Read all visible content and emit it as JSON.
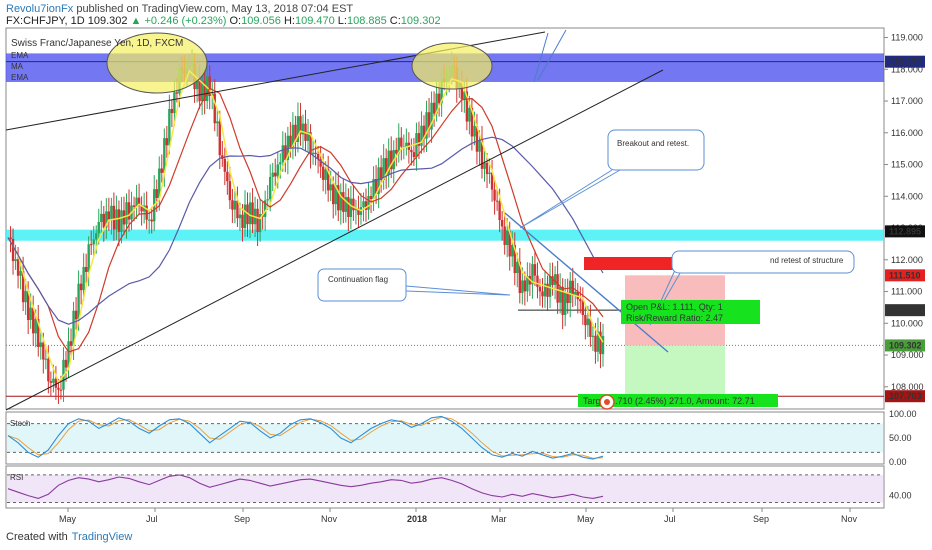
{
  "header": {
    "author": "Revolu7ionFx",
    "published": " published on TradingView.com, May 13, 2018 07:04 EST"
  },
  "quote": {
    "symbol": "FX:CHFJPY, 1D",
    "last": "109.302",
    "change": "▲ +0.246 (+0.23%)",
    "o_label": "O:",
    "o": "109.056",
    "h_label": "H:",
    "h": "109.470",
    "l_label": "L:",
    "l": "108.885",
    "c_label": "C:",
    "c": "109.302"
  },
  "chart_data": {
    "type": "line",
    "title": "Swiss Franc/Japanese Yen, 1D, FXCM",
    "indicators_legend": [
      "EMA",
      "MA",
      "EMA"
    ],
    "x_tick_labels": [
      "May",
      "Jul",
      "Sep",
      "Nov",
      "2018",
      "Mar",
      "May",
      "Jul",
      "Sep",
      "Nov"
    ],
    "y_tick_labels": [
      "119.000",
      "118.000",
      "117.000",
      "116.000",
      "115.000",
      "114.000",
      "113.000",
      "112.000",
      "111.000",
      "110.000",
      "109.000",
      "108.000"
    ],
    "ylim": [
      107.3,
      119.3
    ],
    "price_series": [
      {
        "t": 0,
        "v": 112.7
      },
      {
        "t": 2,
        "v": 111.6
      },
      {
        "t": 4,
        "v": 110.4
      },
      {
        "t": 6,
        "v": 109.6
      },
      {
        "t": 8,
        "v": 108.4
      },
      {
        "t": 10,
        "v": 107.9
      },
      {
        "t": 12,
        "v": 109.2
      },
      {
        "t": 14,
        "v": 110.9
      },
      {
        "t": 16,
        "v": 112.2
      },
      {
        "t": 18,
        "v": 113.1
      },
      {
        "t": 20,
        "v": 113.4
      },
      {
        "t": 22,
        "v": 113.2
      },
      {
        "t": 24,
        "v": 113.6
      },
      {
        "t": 26,
        "v": 113.9
      },
      {
        "t": 28,
        "v": 113.2
      },
      {
        "t": 30,
        "v": 114.6
      },
      {
        "t": 32,
        "v": 116.4
      },
      {
        "t": 34,
        "v": 117.8
      },
      {
        "t": 36,
        "v": 118.1
      },
      {
        "t": 38,
        "v": 117.2
      },
      {
        "t": 40,
        "v": 117.5
      },
      {
        "t": 42,
        "v": 115.6
      },
      {
        "t": 44,
        "v": 114.0
      },
      {
        "t": 46,
        "v": 113.3
      },
      {
        "t": 48,
        "v": 113.5
      },
      {
        "t": 50,
        "v": 113.1
      },
      {
        "t": 52,
        "v": 114.4
      },
      {
        "t": 54,
        "v": 115.1
      },
      {
        "t": 56,
        "v": 115.8
      },
      {
        "t": 58,
        "v": 116.3
      },
      {
        "t": 60,
        "v": 115.6
      },
      {
        "t": 62,
        "v": 115.0
      },
      {
        "t": 64,
        "v": 114.2
      },
      {
        "t": 66,
        "v": 113.8
      },
      {
        "t": 68,
        "v": 113.6
      },
      {
        "t": 70,
        "v": 113.5
      },
      {
        "t": 72,
        "v": 114.0
      },
      {
        "t": 74,
        "v": 114.8
      },
      {
        "t": 76,
        "v": 115.2
      },
      {
        "t": 78,
        "v": 115.8
      },
      {
        "t": 80,
        "v": 115.4
      },
      {
        "t": 82,
        "v": 116.0
      },
      {
        "t": 84,
        "v": 116.6
      },
      {
        "t": 86,
        "v": 117.4
      },
      {
        "t": 88,
        "v": 118.0
      },
      {
        "t": 90,
        "v": 117.2
      },
      {
        "t": 92,
        "v": 116.2
      },
      {
        "t": 94,
        "v": 115.2
      },
      {
        "t": 96,
        "v": 114.4
      },
      {
        "t": 98,
        "v": 113.0
      },
      {
        "t": 100,
        "v": 112.2
      },
      {
        "t": 102,
        "v": 111.0
      },
      {
        "t": 104,
        "v": 111.6
      },
      {
        "t": 106,
        "v": 110.8
      },
      {
        "t": 108,
        "v": 111.4
      },
      {
        "t": 110,
        "v": 110.6
      },
      {
        "t": 112,
        "v": 111.2
      },
      {
        "t": 114,
        "v": 110.4
      },
      {
        "t": 116,
        "v": 109.5
      },
      {
        "t": 118,
        "v": 109.3
      }
    ],
    "levels": [
      {
        "name": "resistance-zone",
        "low": 117.6,
        "high": 118.5,
        "color": "#5b5ff0"
      },
      {
        "name": "support-zone",
        "low": 112.6,
        "high": 112.95,
        "color": "#3ff0f5"
      }
    ],
    "price_labels": [
      {
        "value": 118.239,
        "text": "118.239",
        "color": "#1f2a80"
      },
      {
        "value": 112.895,
        "text": "112.895",
        "color": "#111111"
      },
      {
        "value": 111.51,
        "text": "111.510",
        "color": "#e52020"
      },
      {
        "value": 110.413,
        "text": "110.413",
        "color": "#333333"
      },
      {
        "value": 109.302,
        "text": "109.302",
        "color": "#4a9e3a"
      },
      {
        "value": 107.703,
        "text": "107.703",
        "color": "#a31414"
      }
    ],
    "annotations": {
      "breakout": "Breakout and retest.",
      "flag": "Continuation flag",
      "retest": "nd retest of structure",
      "position_pl": "Open P&L: 1.111, Qty: 1",
      "position_rr": "Risk/Reward Ratio: 2.47",
      "target_prefix": "Targ",
      "target_suffix": ".710 (2.45%) 271.0, Amount: 72.71"
    },
    "stoch": {
      "label": "Stoch",
      "tick_labels": [
        "100.00",
        "50.00",
        "0.00"
      ],
      "ylim": [
        0,
        100
      ],
      "values": [
        55,
        40,
        20,
        10,
        25,
        55,
        80,
        90,
        85,
        70,
        80,
        92,
        85,
        70,
        60,
        75,
        88,
        90,
        80,
        60,
        40,
        55,
        70,
        85,
        82,
        65,
        50,
        60,
        78,
        88,
        90,
        82,
        70,
        50,
        40,
        55,
        70,
        80,
        88,
        84,
        72,
        80,
        92,
        95,
        85,
        70,
        50,
        30,
        15,
        10,
        18,
        12,
        22,
        15,
        8,
        12,
        18,
        10,
        6,
        12
      ]
    },
    "rsi": {
      "label": "RSI",
      "tick_labels": [
        "40.00"
      ],
      "ylim": [
        25,
        80
      ],
      "values": [
        50,
        45,
        40,
        36,
        42,
        55,
        62,
        66,
        64,
        60,
        63,
        67,
        65,
        60,
        56,
        62,
        68,
        70,
        66,
        58,
        52,
        56,
        60,
        64,
        62,
        58,
        54,
        57,
        60,
        63,
        64,
        61,
        58,
        55,
        53,
        55,
        58,
        60,
        63,
        62,
        58,
        60,
        64,
        66,
        62,
        57,
        50,
        44,
        40,
        38,
        42,
        39,
        43,
        40,
        37,
        39,
        42,
        38,
        36,
        39
      ]
    }
  },
  "footer": {
    "created": "Created with",
    "brand": "TradingView"
  },
  "colors": {
    "bull": "#26a65b",
    "bear": "#d03030",
    "ema_fast": "#f5e642",
    "ma": "#cf3b2a",
    "ema_slow": "#5a5aa8"
  }
}
